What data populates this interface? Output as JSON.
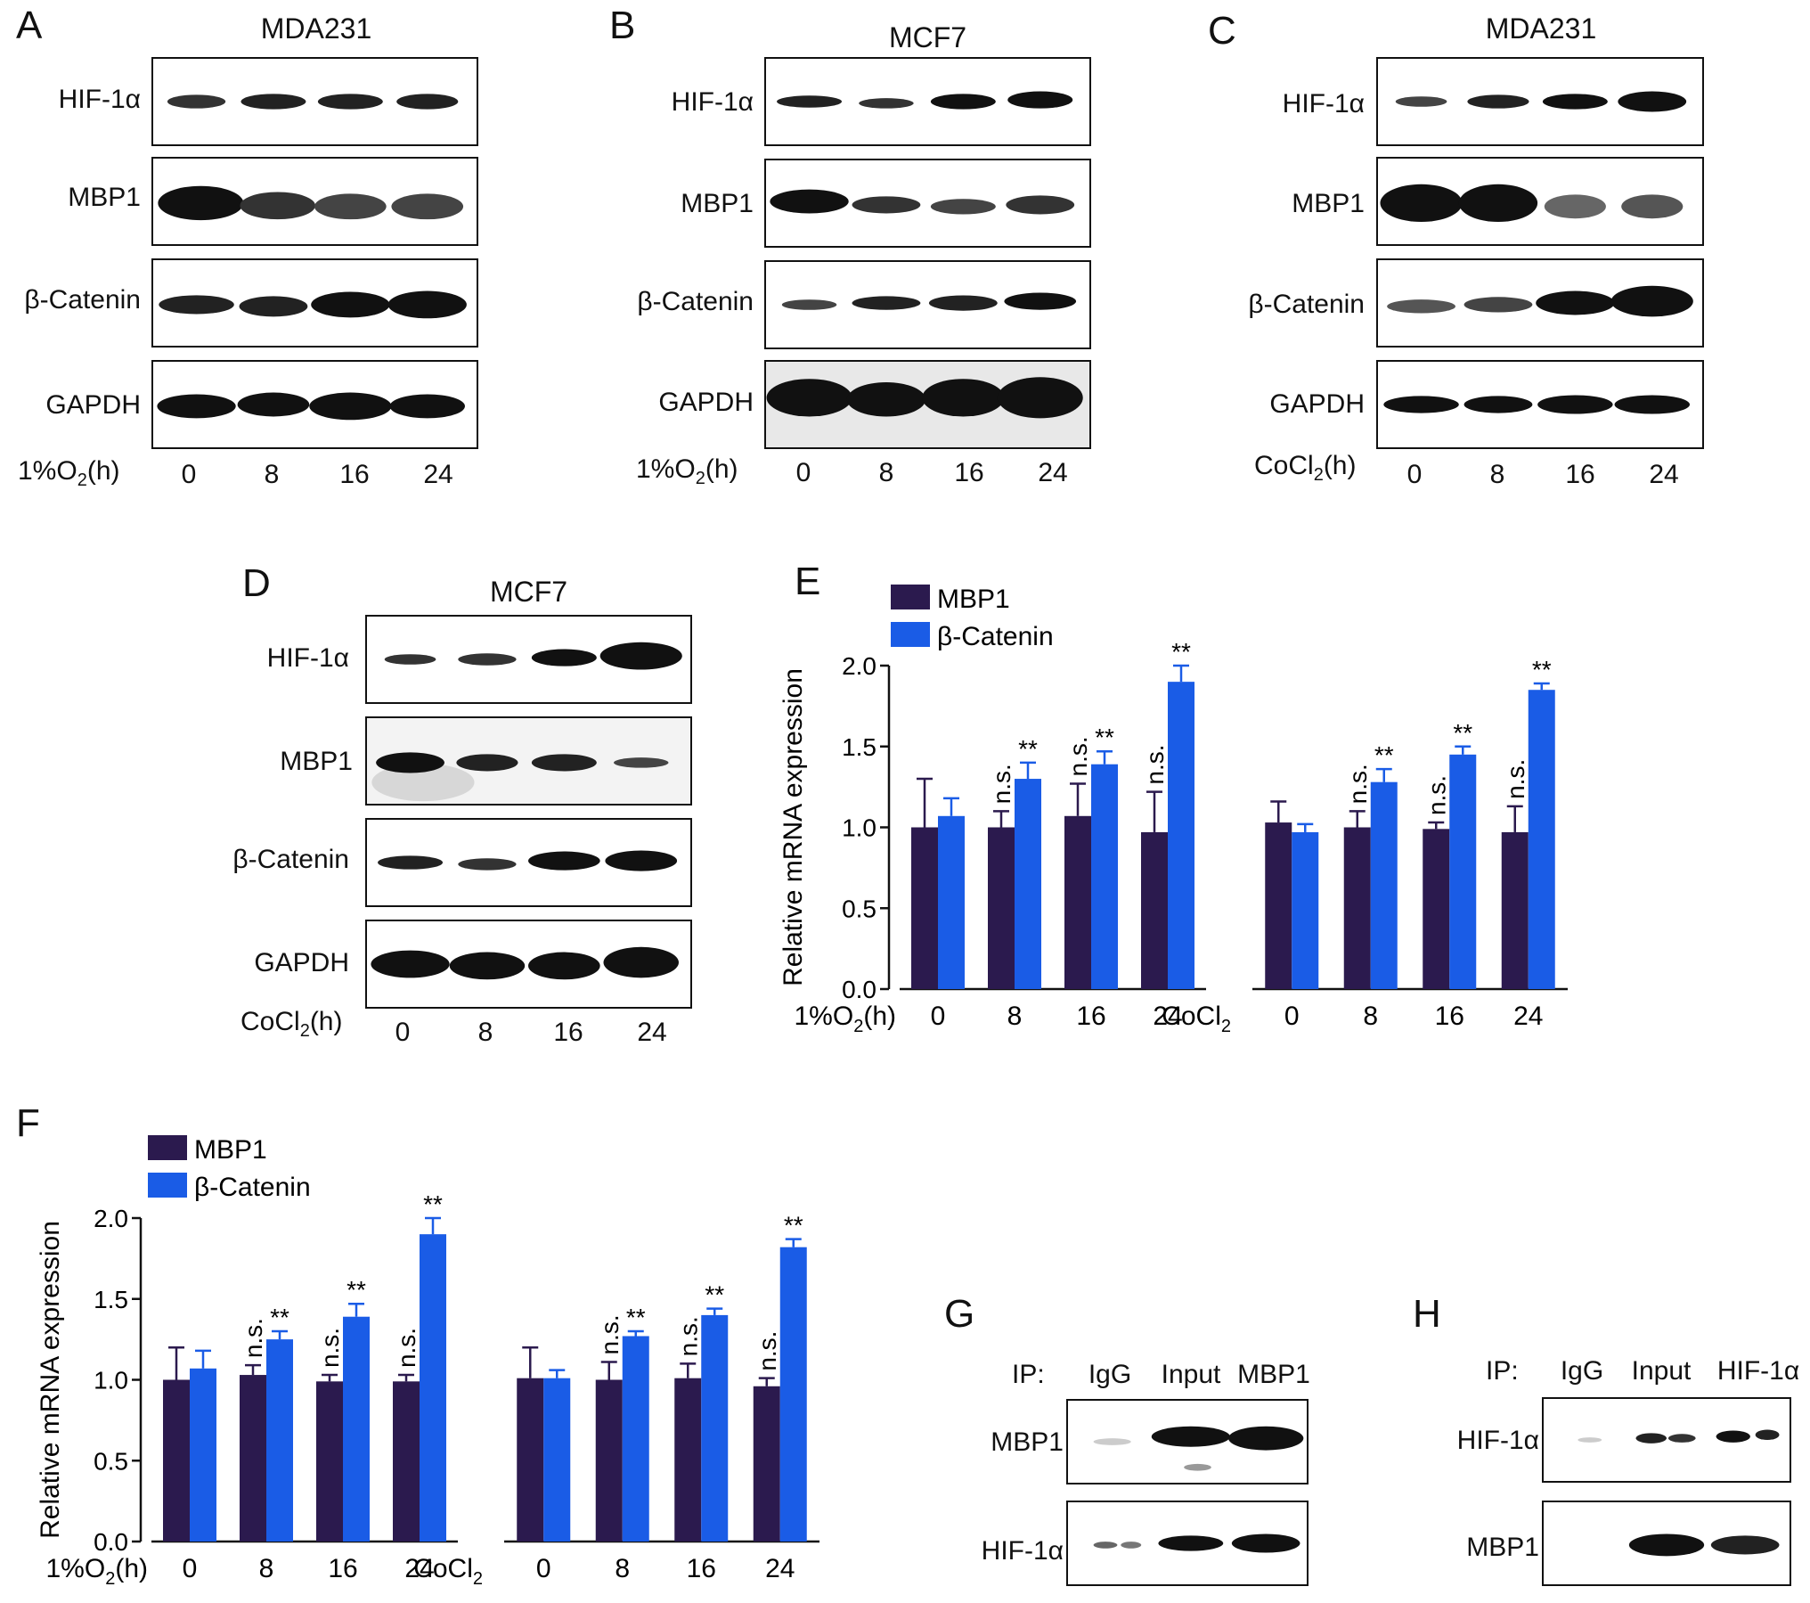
{
  "panels": {
    "A": {
      "letter": "A",
      "title": "MDA231",
      "rows": [
        "HIF-1α",
        "MBP1",
        "β-Catenin",
        "GAPDH"
      ],
      "xlabel_main": "1%O",
      "xlabel_sub": "2",
      "xlabel_tail": "(h)",
      "times": [
        "0",
        "8",
        "16",
        "24"
      ]
    },
    "B": {
      "letter": "B",
      "title": "MCF7",
      "rows": [
        "HIF-1α",
        "MBP1",
        "β-Catenin",
        "GAPDH"
      ],
      "xlabel_main": "1%O",
      "xlabel_sub": "2",
      "xlabel_tail": "(h)",
      "times": [
        "0",
        "8",
        "16",
        "24"
      ]
    },
    "C": {
      "letter": "C",
      "title": "MDA231",
      "rows": [
        "HIF-1α",
        "MBP1",
        "β-Catenin",
        "GAPDH"
      ],
      "xlabel_main": "CoCl",
      "xlabel_sub": "2",
      "xlabel_tail": "(h)",
      "times": [
        "0",
        "8",
        "16",
        "24"
      ]
    },
    "D": {
      "letter": "D",
      "title": "MCF7",
      "rows": [
        "HIF-1α",
        "MBP1",
        "β-Catenin",
        "GAPDH"
      ],
      "xlabel_main": "CoCl",
      "xlabel_sub": "2",
      "xlabel_tail": "(h)",
      "times": [
        "0",
        "8",
        "16",
        "24"
      ]
    },
    "E": {
      "letter": "E"
    },
    "F": {
      "letter": "F"
    },
    "G": {
      "letter": "G",
      "ip_label": "IP:",
      "lanes": [
        "IgG",
        "Input",
        "MBP1"
      ],
      "rows": [
        "MBP1",
        "HIF-1α"
      ]
    },
    "H": {
      "letter": "H",
      "ip_label": "IP:",
      "lanes": [
        "IgG",
        "Input",
        "HIF-1α"
      ],
      "rows": [
        "HIF-1α",
        "MBP1"
      ]
    }
  },
  "colors": {
    "mbp1": "#2b1a4e",
    "catenin": "#1a5ce6",
    "band": "#111111"
  },
  "chart_data": [
    {
      "panel": "E",
      "type": "bar",
      "ylabel": "Relative mRNA expression",
      "ylim": [
        0,
        2.0
      ],
      "yticks": [
        "0.0",
        "0.5",
        "1.0",
        "1.5",
        "2.0"
      ],
      "legend": [
        "MBP1",
        "β-Catenin"
      ],
      "groups": [
        {
          "prefix_main": "1%O",
          "prefix_sub": "2",
          "prefix_tail": "(h)",
          "categories": [
            "0",
            "8",
            "16",
            "24"
          ],
          "series": [
            {
              "name": "MBP1",
              "values": [
                1.0,
                1.0,
                1.07,
                0.97
              ],
              "errors": [
                0.3,
                0.1,
                0.2,
                0.25
              ]
            },
            {
              "name": "β-Catenin",
              "values": [
                1.07,
                1.3,
                1.39,
                1.9
              ],
              "errors": [
                0.11,
                0.1,
                0.08,
                0.1
              ]
            }
          ],
          "annotations_mbp1": [
            "",
            "n.s.",
            "n.s.",
            "n.s."
          ],
          "annotations_catenin": [
            "",
            "**",
            "**",
            "**"
          ]
        },
        {
          "prefix_main": "CoCl",
          "prefix_sub": "2",
          "prefix_tail": "",
          "categories": [
            "0",
            "8",
            "16",
            "24"
          ],
          "series": [
            {
              "name": "MBP1",
              "values": [
                1.03,
                1.0,
                0.99,
                0.97
              ],
              "errors": [
                0.13,
                0.1,
                0.04,
                0.16
              ]
            },
            {
              "name": "β-Catenin",
              "values": [
                0.97,
                1.28,
                1.45,
                1.85
              ],
              "errors": [
                0.05,
                0.08,
                0.05,
                0.04
              ]
            }
          ],
          "annotations_mbp1": [
            "",
            "n.s.",
            "n.s.",
            "n.s."
          ],
          "annotations_catenin": [
            "",
            "**",
            "**",
            "**"
          ]
        }
      ]
    },
    {
      "panel": "F",
      "type": "bar",
      "ylabel": "Relative mRNA expression",
      "ylim": [
        0,
        2.0
      ],
      "yticks": [
        "0.0",
        "0.5",
        "1.0",
        "1.5",
        "2.0"
      ],
      "legend": [
        "MBP1",
        "β-Catenin"
      ],
      "groups": [
        {
          "prefix_main": "1%O",
          "prefix_sub": "2",
          "prefix_tail": "(h)",
          "categories": [
            "0",
            "8",
            "16",
            "24"
          ],
          "series": [
            {
              "name": "MBP1",
              "values": [
                1.0,
                1.03,
                0.99,
                0.99
              ],
              "errors": [
                0.2,
                0.06,
                0.04,
                0.04
              ]
            },
            {
              "name": "β-Catenin",
              "values": [
                1.07,
                1.25,
                1.39,
                1.9
              ],
              "errors": [
                0.11,
                0.05,
                0.08,
                0.1
              ]
            }
          ],
          "annotations_mbp1": [
            "",
            "n.s.",
            "n.s.",
            "n.s."
          ],
          "annotations_catenin": [
            "",
            "**",
            "**",
            "**"
          ]
        },
        {
          "prefix_main": "CoCl",
          "prefix_sub": "2",
          "prefix_tail": "",
          "categories": [
            "0",
            "8",
            "16",
            "24"
          ],
          "series": [
            {
              "name": "MBP1",
              "values": [
                1.01,
                1.0,
                1.01,
                0.96
              ],
              "errors": [
                0.19,
                0.11,
                0.09,
                0.05
              ]
            },
            {
              "name": "β-Catenin",
              "values": [
                1.01,
                1.27,
                1.4,
                1.82
              ],
              "errors": [
                0.05,
                0.03,
                0.04,
                0.05
              ]
            }
          ],
          "annotations_mbp1": [
            "",
            "n.s.",
            "n.s.",
            "n.s."
          ],
          "annotations_catenin": [
            "",
            "**",
            "**",
            "**"
          ]
        }
      ]
    }
  ]
}
